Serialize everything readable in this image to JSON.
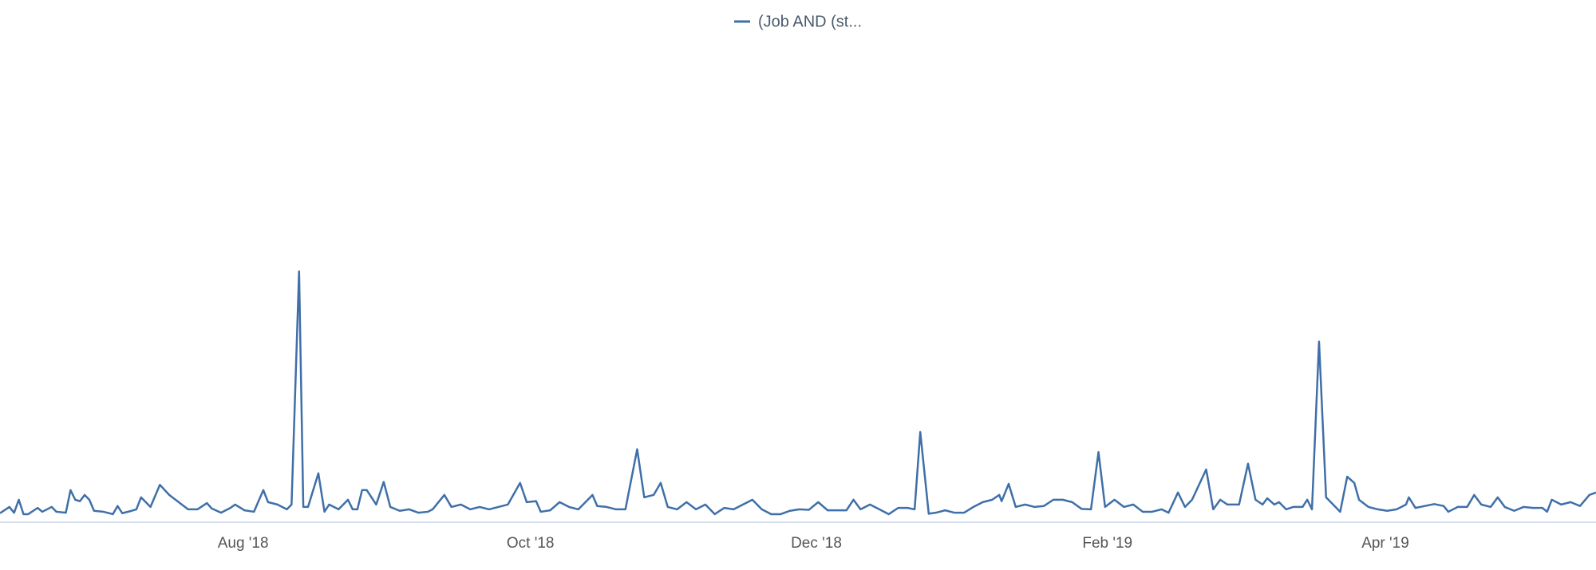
{
  "chart_data": {
    "type": "line",
    "xlim": [
      0,
      339.4
    ],
    "xticks": [
      {
        "value": 51.7,
        "label": "Aug '18"
      },
      {
        "value": 112.8,
        "label": "Oct '18"
      },
      {
        "value": 173.6,
        "label": "Dec '18"
      },
      {
        "value": 235.5,
        "label": "Feb '19"
      },
      {
        "value": 294.6,
        "label": "Apr '19"
      }
    ],
    "ylim": [
      0,
      100
    ],
    "legend": "top",
    "x": [
      0,
      2,
      3,
      4,
      5,
      6,
      8,
      9,
      11,
      12,
      14,
      15,
      16,
      17,
      18,
      19,
      20,
      22,
      24,
      25,
      26,
      28,
      29,
      30,
      31,
      32,
      34,
      36,
      38,
      40,
      42,
      44,
      45,
      47,
      49,
      50,
      52,
      54,
      56,
      57,
      59,
      61,
      62,
      63.6,
      64.5,
      65.5,
      67.7,
      69,
      70,
      72,
      74,
      75,
      76,
      77,
      78,
      80,
      81.6,
      83,
      85,
      87,
      89,
      91,
      92,
      94.5,
      96,
      98,
      100,
      102,
      104,
      106,
      108,
      110.6,
      112,
      114,
      115,
      117,
      119,
      121,
      123,
      126,
      127,
      129,
      131,
      133,
      135.5,
      137,
      139,
      140.5,
      142,
      144,
      146,
      148,
      150,
      152,
      154,
      156,
      158,
      160,
      162,
      164,
      166,
      168,
      170,
      172,
      174,
      176,
      178,
      180,
      181.5,
      183,
      185,
      187,
      189,
      191,
      193,
      194.5,
      195.7,
      197.5,
      199,
      201,
      203,
      205,
      207,
      209,
      211,
      212.5,
      213,
      214.5,
      216,
      218,
      220,
      222,
      224,
      226,
      228,
      230,
      232,
      233.6,
      235,
      237,
      239,
      241,
      243,
      245,
      247,
      248.5,
      250.5,
      252,
      253.5,
      256.5,
      258,
      259.5,
      261,
      263.5,
      265.4,
      267,
      268.5,
      269.5,
      271,
      272,
      273.5,
      275,
      277,
      278,
      279,
      280.5,
      282,
      283.5,
      285,
      286.5,
      288,
      289,
      291,
      293,
      295,
      297,
      299,
      299.6,
      301,
      303,
      305,
      307,
      308,
      310,
      312,
      313.5,
      315,
      317,
      318.5,
      320,
      322,
      324,
      326,
      328,
      329,
      330,
      332,
      334,
      336,
      338,
      339.4
    ],
    "series": [
      {
        "name": "(Job AND (st...",
        "color": "#3f6fa8",
        "values": [
          1.7,
          3,
          1.8,
          4.5,
          1.5,
          1.5,
          2.8,
          2.0,
          3.0,
          2.0,
          1.8,
          6.5,
          4.5,
          4.2,
          5.5,
          4.5,
          2.2,
          2.0,
          1.5,
          3.2,
          1.7,
          2.2,
          2.5,
          5,
          4,
          3,
          7.6,
          5.5,
          4,
          2.5,
          2.5,
          3.8,
          2.7,
          1.8,
          2.8,
          3.5,
          2.3,
          2,
          6.5,
          4,
          3.5,
          2.5,
          3.5,
          52,
          3,
          3,
          10,
          2,
          3.5,
          2.5,
          4.5,
          2.5,
          2.5,
          6.5,
          6.5,
          3.5,
          8.2,
          3,
          2.2,
          2.5,
          1.8,
          2.0,
          2.5,
          5.5,
          3,
          3.5,
          2.5,
          3.0,
          2.5,
          3,
          3.5,
          8,
          4,
          4.2,
          2,
          2.3,
          4,
          3,
          2.5,
          5.5,
          3.2,
          3,
          2.5,
          2.5,
          15,
          5,
          5.5,
          8,
          3,
          2.5,
          4,
          2.5,
          3.5,
          1.5,
          2.8,
          2.5,
          3.5,
          4.5,
          2.5,
          1.5,
          1.5,
          2.2,
          2.5,
          2.4,
          4,
          2.3,
          2.3,
          2.3,
          4.5,
          2.5,
          3.5,
          2.5,
          1.5,
          2.8,
          2.8,
          2.5,
          18.6,
          1.6,
          1.8,
          2.3,
          1.8,
          1.8,
          3,
          4,
          4.5,
          5.5,
          4.2,
          7.8,
          3,
          3.5,
          3,
          3.2,
          4.5,
          4.5,
          4,
          2.6,
          2.5,
          14.4,
          3,
          4.5,
          3,
          3.5,
          2,
          2,
          2.5,
          1.8,
          6,
          3,
          4.5,
          10.8,
          2.5,
          4.5,
          3.5,
          3.5,
          12,
          4.5,
          3.5,
          4.8,
          3.5,
          4,
          2.5,
          3,
          3,
          4.5,
          2.5,
          37.4,
          5,
          3.5,
          2,
          9.3,
          8,
          4.5,
          3,
          2.5,
          2.2,
          2.5,
          3.5,
          5,
          2.8,
          3.2,
          3.6,
          3.2,
          2,
          3,
          3,
          5.5,
          3.5,
          3,
          5,
          3,
          2.2,
          3,
          2.8,
          2.8,
          2,
          4.5,
          3.5,
          4,
          3.2,
          5.5,
          6
        ]
      }
    ]
  }
}
